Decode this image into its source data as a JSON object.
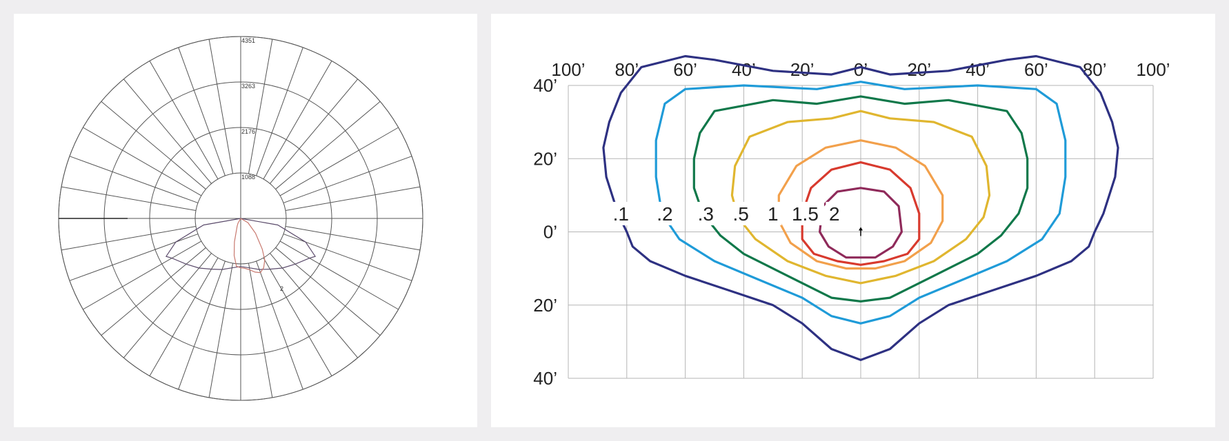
{
  "chart_data": [
    {
      "type": "polar",
      "title": "",
      "radial_ticks": [
        "1088",
        "2176",
        "3263",
        "4351"
      ],
      "r_max": 4351,
      "angle_step_deg": 10,
      "curve_label": "2",
      "series": [
        {
          "name": "",
          "color": "#5a4a6a",
          "points_deg_value": [
            [
              -90,
              0
            ],
            [
              -80,
              900
            ],
            [
              -70,
              1650
            ],
            [
              -63,
              2000
            ],
            [
              -60,
              1900
            ],
            [
              -50,
              1700
            ],
            [
              -40,
              1550
            ],
            [
              -30,
              1400
            ],
            [
              -20,
              1300
            ],
            [
              -10,
              1200
            ],
            [
              0,
              1150
            ],
            [
              10,
              1200
            ],
            [
              20,
              1300
            ],
            [
              30,
              1400
            ],
            [
              40,
              1550
            ],
            [
              50,
              1700
            ],
            [
              60,
              1900
            ],
            [
              63,
              2000
            ],
            [
              70,
              1650
            ],
            [
              80,
              900
            ],
            [
              90,
              0
            ]
          ]
        },
        {
          "name": "",
          "color": "#c8786e",
          "points_deg_value": [
            [
              -90,
              0
            ],
            [
              -30,
              130
            ],
            [
              -25,
              200
            ],
            [
              -15,
              580
            ],
            [
              -10,
              900
            ],
            [
              -5,
              1150
            ],
            [
              0,
              1180
            ],
            [
              5,
              1200
            ],
            [
              10,
              1250
            ],
            [
              15,
              1330
            ],
            [
              20,
              1380
            ],
            [
              25,
              1300
            ],
            [
              30,
              1150
            ],
            [
              35,
              900
            ],
            [
              45,
              500
            ],
            [
              60,
              200
            ],
            [
              90,
              0
            ]
          ]
        }
      ]
    },
    {
      "type": "contour",
      "title": "",
      "x_ticks": [
        "100’",
        "80’",
        "60’",
        "40’",
        "20’",
        "0’",
        "20’",
        "40’",
        "60’",
        "80’",
        "100’"
      ],
      "y_ticks": [
        "40’",
        "20’",
        "0’",
        "20’",
        "40’"
      ],
      "x_range": [
        -100,
        100
      ],
      "y_range": [
        40,
        -40
      ],
      "levels": [
        {
          "label": ".1",
          "color": "#2e3182",
          "label_x": -82,
          "label_y": 5,
          "points": [
            [
              0,
              45
            ],
            [
              -10,
              43
            ],
            [
              -30,
              44
            ],
            [
              -50,
              47
            ],
            [
              -60,
              48
            ],
            [
              -75,
              45
            ],
            [
              -82,
              38
            ],
            [
              -86,
              30
            ],
            [
              -88,
              23
            ],
            [
              -87,
              15
            ],
            [
              -83,
              5
            ],
            [
              -80,
              0
            ],
            [
              -78,
              -4
            ],
            [
              -72,
              -8
            ],
            [
              -60,
              -12
            ],
            [
              -45,
              -16
            ],
            [
              -30,
              -20
            ],
            [
              -20,
              -25
            ],
            [
              -10,
              -32
            ],
            [
              0,
              -35
            ],
            [
              10,
              -32
            ],
            [
              20,
              -25
            ],
            [
              30,
              -20
            ],
            [
              45,
              -16
            ],
            [
              60,
              -12
            ],
            [
              72,
              -8
            ],
            [
              78,
              -4
            ],
            [
              80,
              0
            ],
            [
              83,
              5
            ],
            [
              87,
              15
            ],
            [
              88,
              23
            ],
            [
              86,
              30
            ],
            [
              82,
              38
            ],
            [
              75,
              45
            ],
            [
              60,
              48
            ],
            [
              50,
              47
            ],
            [
              30,
              44
            ],
            [
              10,
              43
            ],
            [
              0,
              45
            ]
          ]
        },
        {
          "label": ".2",
          "color": "#1f9bd8",
          "label_x": -67,
          "label_y": 5,
          "points": [
            [
              0,
              41
            ],
            [
              -15,
              39
            ],
            [
              -40,
              40
            ],
            [
              -60,
              39
            ],
            [
              -67,
              35
            ],
            [
              -70,
              25
            ],
            [
              -70,
              15
            ],
            [
              -68,
              5
            ],
            [
              -62,
              -2
            ],
            [
              -50,
              -8
            ],
            [
              -35,
              -13
            ],
            [
              -20,
              -18
            ],
            [
              -10,
              -23
            ],
            [
              0,
              -25
            ],
            [
              10,
              -23
            ],
            [
              20,
              -18
            ],
            [
              35,
              -13
            ],
            [
              50,
              -8
            ],
            [
              62,
              -2
            ],
            [
              68,
              5
            ],
            [
              70,
              15
            ],
            [
              70,
              25
            ],
            [
              67,
              35
            ],
            [
              60,
              39
            ],
            [
              40,
              40
            ],
            [
              15,
              39
            ],
            [
              0,
              41
            ]
          ]
        },
        {
          "label": ".3",
          "color": "#10784a",
          "label_x": -53,
          "label_y": 5,
          "points": [
            [
              0,
              37
            ],
            [
              -15,
              35
            ],
            [
              -30,
              36
            ],
            [
              -50,
              33
            ],
            [
              -55,
              27
            ],
            [
              -57,
              20
            ],
            [
              -57,
              12
            ],
            [
              -54,
              5
            ],
            [
              -48,
              -1
            ],
            [
              -40,
              -6
            ],
            [
              -25,
              -12
            ],
            [
              -10,
              -18
            ],
            [
              0,
              -19
            ],
            [
              10,
              -18
            ],
            [
              25,
              -12
            ],
            [
              40,
              -6
            ],
            [
              48,
              -1
            ],
            [
              54,
              5
            ],
            [
              57,
              12
            ],
            [
              57,
              20
            ],
            [
              55,
              27
            ],
            [
              50,
              33
            ],
            [
              30,
              36
            ],
            [
              15,
              35
            ],
            [
              0,
              37
            ]
          ]
        },
        {
          "label": ".5",
          "color": "#e0b62f",
          "label_x": -41,
          "label_y": 5,
          "points": [
            [
              0,
              33
            ],
            [
              -10,
              31
            ],
            [
              -25,
              30
            ],
            [
              -38,
              26
            ],
            [
              -43,
              18
            ],
            [
              -44,
              10
            ],
            [
              -42,
              4
            ],
            [
              -36,
              -2
            ],
            [
              -25,
              -8
            ],
            [
              -12,
              -12
            ],
            [
              0,
              -14
            ],
            [
              12,
              -12
            ],
            [
              25,
              -8
            ],
            [
              36,
              -2
            ],
            [
              42,
              4
            ],
            [
              44,
              10
            ],
            [
              43,
              18
            ],
            [
              38,
              26
            ],
            [
              25,
              30
            ],
            [
              10,
              31
            ],
            [
              0,
              33
            ]
          ]
        },
        {
          "label": "1",
          "color": "#f2a04b",
          "label_x": -30,
          "label_y": 5,
          "points": [
            [
              0,
              25
            ],
            [
              -12,
              23
            ],
            [
              -22,
              18
            ],
            [
              -28,
              10
            ],
            [
              -28,
              3
            ],
            [
              -24,
              -3
            ],
            [
              -15,
              -8
            ],
            [
              -5,
              -10
            ],
            [
              0,
              -10
            ],
            [
              5,
              -10
            ],
            [
              15,
              -8
            ],
            [
              24,
              -3
            ],
            [
              28,
              3
            ],
            [
              28,
              10
            ],
            [
              22,
              18
            ],
            [
              12,
              23
            ],
            [
              0,
              25
            ]
          ]
        },
        {
          "label": "1.5",
          "color": "#d83a2e",
          "label_x": -19,
          "label_y": 5,
          "points": [
            [
              0,
              19
            ],
            [
              -10,
              17
            ],
            [
              -17,
              12
            ],
            [
              -20,
              5
            ],
            [
              -20,
              -2
            ],
            [
              -16,
              -6
            ],
            [
              -8,
              -8
            ],
            [
              0,
              -9
            ],
            [
              8,
              -8
            ],
            [
              16,
              -6
            ],
            [
              20,
              -2
            ],
            [
              20,
              5
            ],
            [
              17,
              12
            ],
            [
              10,
              17
            ],
            [
              0,
              19
            ]
          ]
        },
        {
          "label": "2",
          "color": "#8f2a5a",
          "label_x": -9,
          "label_y": 5,
          "points": [
            [
              0,
              12
            ],
            [
              -8,
              11
            ],
            [
              -13,
              7
            ],
            [
              -14,
              0
            ],
            [
              -11,
              -4
            ],
            [
              -5,
              -7
            ],
            [
              0,
              -7
            ],
            [
              5,
              -7
            ],
            [
              11,
              -4
            ],
            [
              14,
              0
            ],
            [
              13,
              7
            ],
            [
              8,
              11
            ],
            [
              0,
              12
            ]
          ]
        }
      ]
    }
  ]
}
